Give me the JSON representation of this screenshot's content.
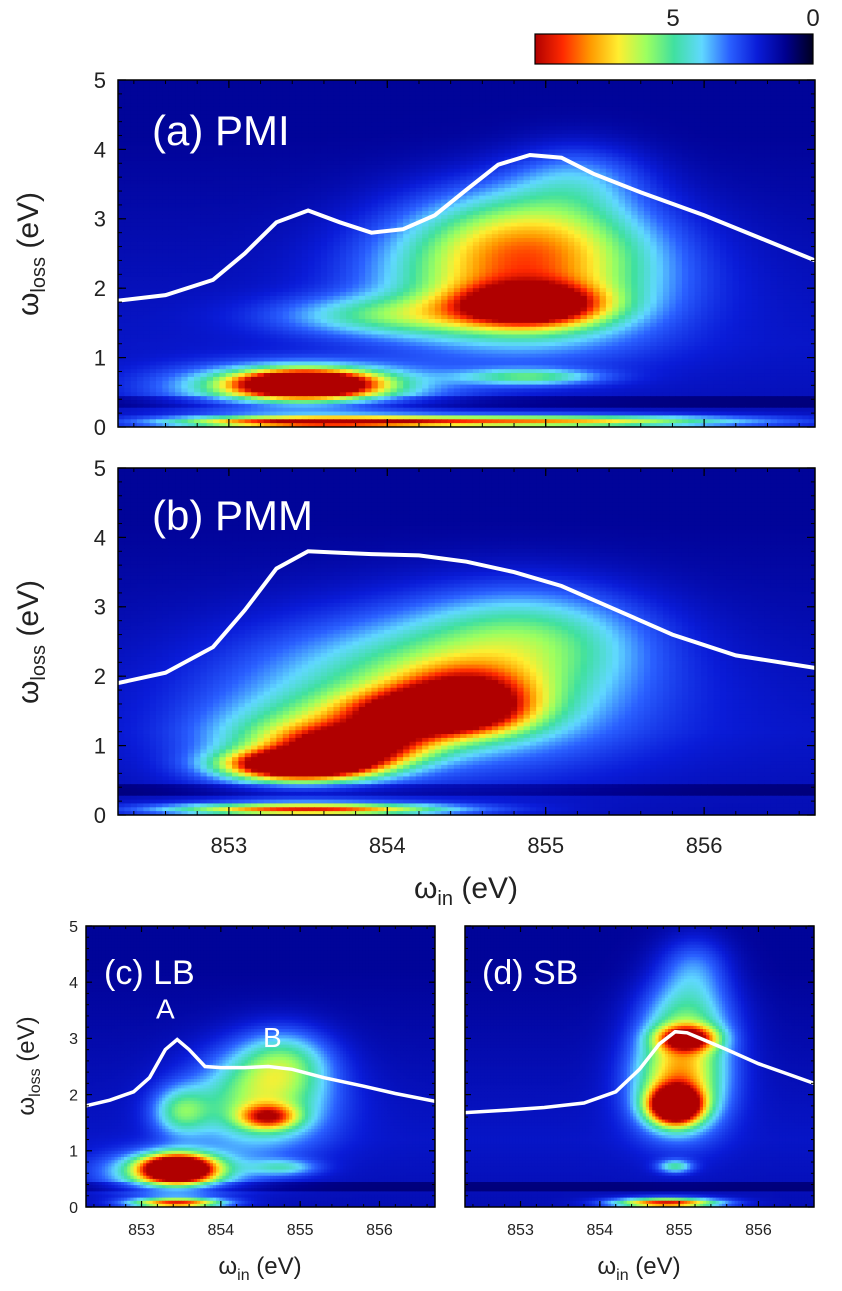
{
  "colorbar": {
    "tick_labels": [
      "5",
      "0"
    ],
    "tick_values": [
      5,
      0
    ],
    "range": [
      0,
      8
    ],
    "colors": [
      "#b00000",
      "#ff2a00",
      "#ff9a00",
      "#ffee30",
      "#9cff60",
      "#40e0a0",
      "#60d8ff",
      "#2a60ff",
      "#0a1cd8",
      "#000090",
      "#000020"
    ]
  },
  "chart_data": [
    {
      "type": "heatmap",
      "panel_label": "(a) PMI",
      "xlim": [
        852.3,
        856.7
      ],
      "ylim": [
        0,
        5
      ],
      "xticks": [
        853,
        854,
        855,
        856
      ],
      "xtick_labels": [
        "",
        "",
        "",
        ""
      ],
      "yticks": [
        0,
        1,
        2,
        3,
        4,
        5
      ],
      "ytick_labels": [
        "0",
        "1",
        "2",
        "3",
        "4",
        "5"
      ],
      "xlabel": "",
      "ylabel": "ωloss (eV)",
      "ylabel_main": "ω",
      "ylabel_sub": "loss",
      "ylabel_unit": " (eV)",
      "hotspots": [
        {
          "x": 853.48,
          "y": 0.62,
          "sx": 0.28,
          "sy": 0.13,
          "amp": 9
        },
        {
          "x": 853.45,
          "y": 0.58,
          "sx": 0.55,
          "sy": 0.22,
          "amp": 4
        },
        {
          "x": 853.5,
          "y": 0.07,
          "sx": 0.6,
          "sy": 0.06,
          "amp": 6
        },
        {
          "x": 854.95,
          "y": 0.08,
          "sx": 0.9,
          "sy": 0.06,
          "amp": 5
        },
        {
          "x": 854.9,
          "y": 1.75,
          "sx": 0.3,
          "sy": 0.2,
          "amp": 6.5
        },
        {
          "x": 854.85,
          "y": 2.1,
          "sx": 0.6,
          "sy": 0.65,
          "amp": 4.5
        },
        {
          "x": 854.9,
          "y": 2.8,
          "sx": 0.5,
          "sy": 0.5,
          "amp": 2.5
        },
        {
          "x": 854.9,
          "y": 0.72,
          "sx": 0.3,
          "sy": 0.08,
          "amp": 2.5
        },
        {
          "x": 854.0,
          "y": 1.6,
          "sx": 0.5,
          "sy": 0.2,
          "amp": 2.2
        },
        {
          "x": 855.2,
          "y": 3.6,
          "sx": 0.3,
          "sy": 0.35,
          "amp": 1.4
        }
      ],
      "xas_curve": {
        "x": [
          852.3,
          852.6,
          852.9,
          853.1,
          853.3,
          853.5,
          853.7,
          853.9,
          854.1,
          854.3,
          854.5,
          854.7,
          854.9,
          855.1,
          855.3,
          855.6,
          856.0,
          856.4,
          856.7
        ],
        "y": [
          1.82,
          1.9,
          2.12,
          2.5,
          2.95,
          3.12,
          2.95,
          2.8,
          2.85,
          3.05,
          3.42,
          3.78,
          3.92,
          3.88,
          3.65,
          3.38,
          3.05,
          2.68,
          2.4
        ]
      }
    },
    {
      "type": "heatmap",
      "panel_label": "(b) PMM",
      "xlim": [
        852.3,
        856.7
      ],
      "ylim": [
        0,
        5
      ],
      "xticks": [
        853,
        854,
        855,
        856
      ],
      "xtick_labels": [
        "853",
        "854",
        "855",
        "856"
      ],
      "yticks": [
        0,
        1,
        2,
        3,
        4,
        5
      ],
      "ytick_labels": [
        "0",
        "1",
        "2",
        "3",
        "4",
        "5"
      ],
      "xlabel": "ωin (eV)",
      "xlabel_main": "ω",
      "xlabel_sub": "in",
      "xlabel_unit": " (eV)",
      "ylabel": "ωloss (eV)",
      "ylabel_main": "ω",
      "ylabel_sub": "loss",
      "ylabel_unit": " (eV)",
      "hotspots": [
        {
          "x": 853.45,
          "y": 0.72,
          "sx": 0.3,
          "sy": 0.14,
          "amp": 9
        },
        {
          "x": 853.5,
          "y": 0.08,
          "sx": 0.6,
          "sy": 0.06,
          "amp": 6
        },
        {
          "x": 853.8,
          "y": 1.0,
          "sx": 0.3,
          "sy": 0.2,
          "amp": 6
        },
        {
          "x": 854.25,
          "y": 1.45,
          "sx": 0.35,
          "sy": 0.22,
          "amp": 6
        },
        {
          "x": 854.5,
          "y": 1.7,
          "sx": 0.3,
          "sy": 0.3,
          "amp": 4
        },
        {
          "x": 854.3,
          "y": 1.8,
          "sx": 0.8,
          "sy": 0.7,
          "amp": 3.5
        },
        {
          "x": 854.9,
          "y": 2.6,
          "sx": 0.5,
          "sy": 0.5,
          "amp": 2.2
        },
        {
          "x": 853.4,
          "y": 1.0,
          "sx": 0.4,
          "sy": 0.4,
          "amp": 2.5
        }
      ],
      "xas_curve": {
        "x": [
          852.3,
          852.6,
          852.9,
          853.1,
          853.3,
          853.5,
          853.7,
          853.9,
          854.2,
          854.5,
          854.8,
          855.1,
          855.4,
          855.8,
          856.2,
          856.7
        ],
        "y": [
          1.9,
          2.05,
          2.42,
          2.95,
          3.55,
          3.8,
          3.78,
          3.76,
          3.74,
          3.65,
          3.5,
          3.3,
          3.0,
          2.6,
          2.3,
          2.12
        ]
      }
    },
    {
      "type": "heatmap",
      "panel_label": "(c) LB",
      "xlim": [
        852.3,
        856.7
      ],
      "ylim": [
        0,
        5
      ],
      "xticks": [
        853,
        854,
        855,
        856
      ],
      "xtick_labels": [
        "853",
        "854",
        "855",
        "856"
      ],
      "yticks": [
        0,
        1,
        2,
        3,
        4,
        5
      ],
      "ytick_labels": [
        "0",
        "1",
        "2",
        "3",
        "4",
        "5"
      ],
      "xlabel": "ωin (eV)",
      "xlabel_main": "ω",
      "xlabel_sub": "in",
      "xlabel_unit": " (eV)",
      "ylabel": "ωloss (eV)",
      "ylabel_main": "ω",
      "ylabel_sub": "loss",
      "ylabel_unit": " (eV)",
      "annotations": [
        {
          "text": "A",
          "x": 853.3,
          "y": 3.35
        },
        {
          "text": "B",
          "x": 854.65,
          "y": 2.85
        }
      ],
      "hotspots": [
        {
          "x": 853.45,
          "y": 0.68,
          "sx": 0.3,
          "sy": 0.17,
          "amp": 9
        },
        {
          "x": 853.4,
          "y": 0.62,
          "sx": 0.6,
          "sy": 0.25,
          "amp": 3.5
        },
        {
          "x": 853.45,
          "y": 0.07,
          "sx": 0.4,
          "sy": 0.06,
          "amp": 6
        },
        {
          "x": 854.6,
          "y": 1.6,
          "sx": 0.25,
          "sy": 0.15,
          "amp": 4
        },
        {
          "x": 854.5,
          "y": 1.9,
          "sx": 0.6,
          "sy": 0.6,
          "amp": 3.5
        },
        {
          "x": 853.5,
          "y": 1.7,
          "sx": 0.25,
          "sy": 0.3,
          "amp": 2.5
        },
        {
          "x": 854.8,
          "y": 2.6,
          "sx": 0.4,
          "sy": 0.4,
          "amp": 2.2
        },
        {
          "x": 854.8,
          "y": 0.7,
          "sx": 0.3,
          "sy": 0.1,
          "amp": 1.8
        }
      ],
      "xas_curve": {
        "x": [
          852.3,
          852.6,
          852.9,
          853.1,
          853.3,
          853.45,
          853.6,
          853.8,
          854.0,
          854.3,
          854.6,
          854.9,
          855.3,
          855.8,
          856.2,
          856.7
        ],
        "y": [
          1.8,
          1.9,
          2.05,
          2.3,
          2.8,
          2.98,
          2.8,
          2.5,
          2.48,
          2.48,
          2.5,
          2.45,
          2.3,
          2.15,
          2.02,
          1.88
        ]
      }
    },
    {
      "type": "heatmap",
      "panel_label": "(d) SB",
      "xlim": [
        852.3,
        856.7
      ],
      "ylim": [
        0,
        5
      ],
      "xticks": [
        853,
        854,
        855,
        856
      ],
      "xtick_labels": [
        "853",
        "854",
        "855",
        "856"
      ],
      "yticks": [
        0,
        1,
        2,
        3,
        4,
        5
      ],
      "ytick_labels": [
        "",
        "",
        "",
        "",
        "",
        ""
      ],
      "xlabel": "ωin (eV)",
      "xlabel_main": "ω",
      "xlabel_sub": "in",
      "xlabel_unit": " (eV)",
      "ylabel": "",
      "hotspots": [
        {
          "x": 854.95,
          "y": 1.8,
          "sx": 0.22,
          "sy": 0.22,
          "amp": 9
        },
        {
          "x": 855.0,
          "y": 2.2,
          "sx": 0.4,
          "sy": 0.6,
          "amp": 4.5
        },
        {
          "x": 855.1,
          "y": 3.0,
          "sx": 0.25,
          "sy": 0.15,
          "amp": 5
        },
        {
          "x": 855.1,
          "y": 3.3,
          "sx": 0.4,
          "sy": 0.6,
          "amp": 2.8
        },
        {
          "x": 854.85,
          "y": 0.07,
          "sx": 0.45,
          "sy": 0.06,
          "amp": 6.5
        },
        {
          "x": 854.95,
          "y": 0.72,
          "sx": 0.15,
          "sy": 0.08,
          "amp": 2.5
        },
        {
          "x": 855.2,
          "y": 4.3,
          "sx": 0.3,
          "sy": 0.4,
          "amp": 1.2
        }
      ],
      "xas_curve": {
        "x": [
          852.3,
          852.8,
          853.3,
          853.8,
          854.2,
          854.5,
          854.75,
          854.95,
          855.1,
          855.3,
          855.6,
          856.0,
          856.4,
          856.7
        ],
        "y": [
          1.68,
          1.72,
          1.77,
          1.85,
          2.05,
          2.45,
          2.9,
          3.12,
          3.1,
          2.98,
          2.8,
          2.55,
          2.35,
          2.2
        ]
      }
    }
  ]
}
